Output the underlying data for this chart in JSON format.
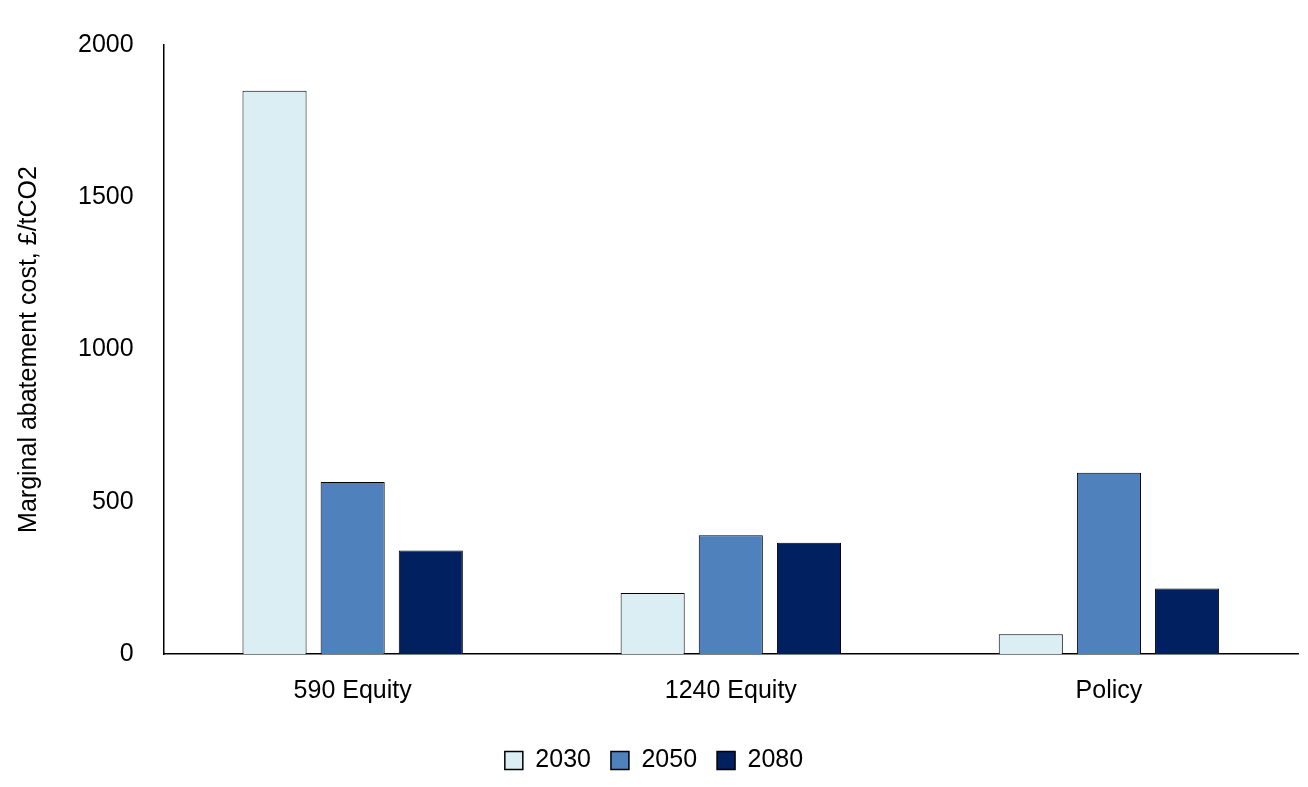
{
  "chart_data": {
    "type": "bar",
    "ylabel": "Marginal abatement cost, £/tCO2",
    "categories": [
      "590 Equity",
      "1240 Equity",
      "Policy"
    ],
    "series": [
      {
        "name": "2030",
        "color": "#daeef3",
        "values": [
          1850,
          200,
          65
        ]
      },
      {
        "name": "2050",
        "color": "#4f81bd",
        "values": [
          565,
          390,
          595
        ]
      },
      {
        "name": "2080",
        "color": "#002060",
        "values": [
          340,
          365,
          215
        ]
      }
    ],
    "ylim": [
      0,
      2000
    ],
    "yticks": [
      0,
      500,
      1000,
      1500,
      2000
    ],
    "grid": false,
    "legend": "bottom"
  }
}
